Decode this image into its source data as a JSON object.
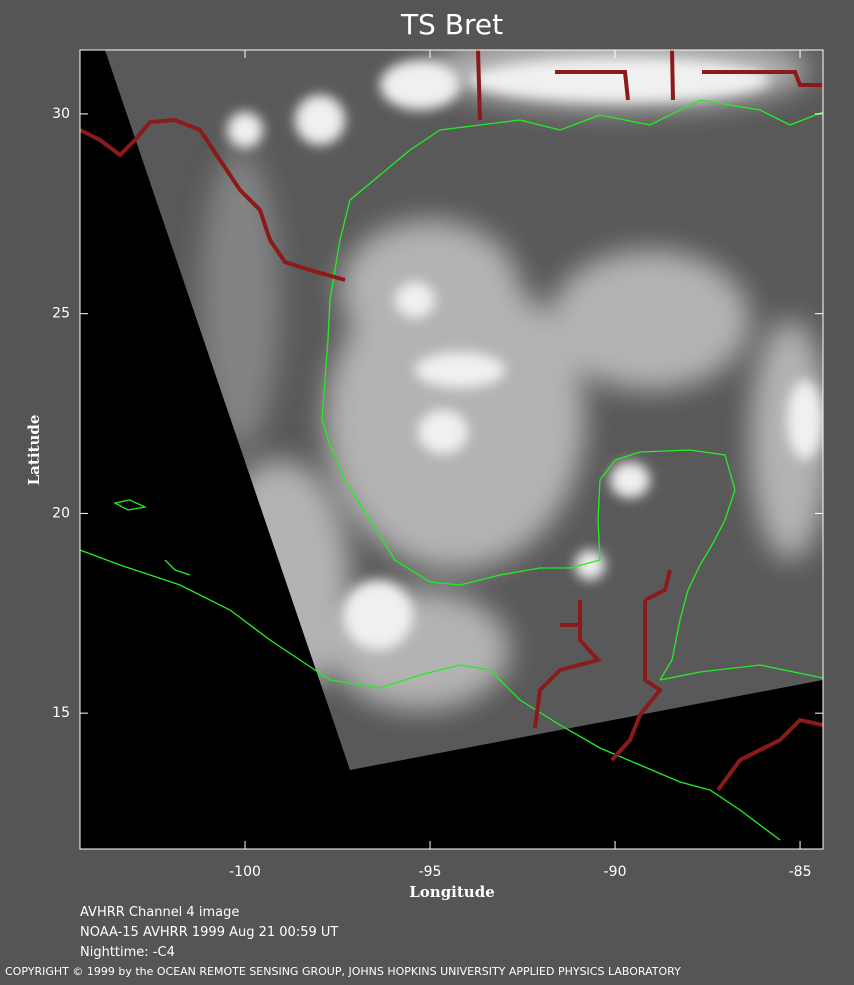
{
  "chart_data": {
    "type": "map",
    "title": "TS Bret",
    "x_label": "Longitude",
    "y_label": "Latitude",
    "xlim": [
      -104.46,
      -84.38
    ],
    "ylim": [
      11.6,
      31.6
    ],
    "xticks": [
      -100,
      -95,
      -90,
      -85
    ],
    "yticks": [
      15,
      20,
      25,
      30
    ],
    "notes": [
      "AVHRR Channel 4 image",
      "NOAA-15 AVHRR 1999 Aug 21 00:59 UT",
      "Nighttime: -C4"
    ],
    "copyright": "COPYRIGHT © 1999 by the OCEAN REMOTE SENSING GROUP, JOHNS HOPKINS UNIVERSITY APPLIED PHYSICS LABORATORY"
  }
}
